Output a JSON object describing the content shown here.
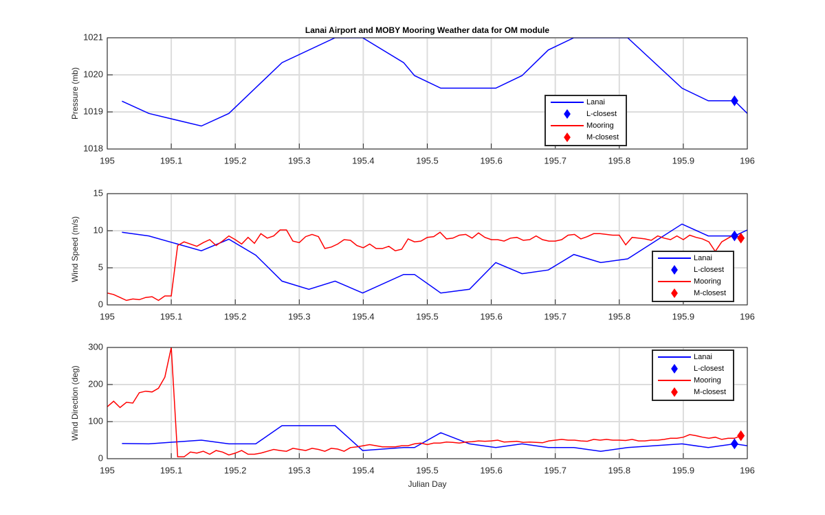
{
  "chart_data": [
    {
      "type": "line",
      "title": "Lanai Airport and MOBY Mooring Weather data for OM module",
      "y_label": "Pressure (mb)",
      "xlim": [
        195,
        196
      ],
      "xticks": [
        195,
        195.1,
        195.2,
        195.3,
        195.4,
        195.5,
        195.6,
        195.7,
        195.8,
        195.9,
        196
      ],
      "ylim": [
        1018,
        1021
      ],
      "yticks": [
        1018,
        1019,
        1020,
        1021
      ],
      "grid": true,
      "legend": "best",
      "series": [
        {
          "name": "Lanai",
          "color": "#0000ff",
          "marker": "none",
          "x": [
            195.023,
            195.065,
            195.147,
            195.19,
            195.273,
            195.356,
            195.399,
            195.463,
            195.48,
            195.521,
            195.607,
            195.648,
            195.689,
            195.729,
            195.813,
            195.898,
            195.939,
            195.98,
            196.0
          ],
          "values": [
            1019.29,
            1018.96,
            1018.62,
            1018.96,
            1020.33,
            1021,
            1021,
            1020.33,
            1019.98,
            1019.64,
            1019.64,
            1019.98,
            1020.67,
            1021,
            1021,
            1019.64,
            1019.3,
            1019.3,
            1018.96
          ]
        },
        {
          "name": "L-closest",
          "color": "#0000ff",
          "marker": "diamond",
          "x": [
            195.98
          ],
          "values": [
            1019.3
          ]
        },
        {
          "name": "Mooring",
          "color": "#ff0000",
          "marker": "none",
          "x": [],
          "values": []
        },
        {
          "name": "M-closest",
          "color": "#ff0000",
          "marker": "diamond",
          "x": [],
          "values": []
        }
      ]
    },
    {
      "type": "line",
      "y_label": "Wind Speed (m/s)",
      "xlim": [
        195,
        196
      ],
      "xticks": [
        195,
        195.1,
        195.2,
        195.3,
        195.4,
        195.5,
        195.6,
        195.7,
        195.8,
        195.9,
        196
      ],
      "ylim": [
        0,
        15
      ],
      "yticks": [
        0,
        5,
        10,
        15
      ],
      "grid": true,
      "legend": "southeast",
      "series": [
        {
          "name": "Lanai",
          "color": "#0000ff",
          "marker": "none",
          "x": [
            195.023,
            195.065,
            195.147,
            195.19,
            195.232,
            195.273,
            195.315,
            195.356,
            195.399,
            195.463,
            195.48,
            195.521,
            195.566,
            195.607,
            195.648,
            195.689,
            195.729,
            195.771,
            195.813,
            195.898,
            195.939,
            195.98,
            196.0
          ],
          "values": [
            9.8,
            9.3,
            7.3,
            8.85,
            6.7,
            3.2,
            2.1,
            3.2,
            1.6,
            4.1,
            4.1,
            1.6,
            2.1,
            5.7,
            4.2,
            4.7,
            6.8,
            5.7,
            6.2,
            10.9,
            9.3,
            9.3,
            10.1
          ]
        },
        {
          "name": "L-closest",
          "color": "#0000ff",
          "marker": "diamond",
          "x": [
            195.98
          ],
          "values": [
            9.3
          ]
        },
        {
          "name": "Mooring",
          "color": "#ff0000",
          "marker": "none",
          "x": [
            195,
            195.01,
            195.02,
            195.03,
            195.04,
            195.05,
            195.06,
            195.07,
            195.08,
            195.09,
            195.1,
            195.11,
            195.12,
            195.13,
            195.14,
            195.15,
            195.16,
            195.17,
            195.18,
            195.19,
            195.2,
            195.21,
            195.22,
            195.23,
            195.24,
            195.25,
            195.26,
            195.27,
            195.28,
            195.29,
            195.3,
            195.31,
            195.32,
            195.33,
            195.34,
            195.35,
            195.36,
            195.37,
            195.38,
            195.39,
            195.4,
            195.41,
            195.42,
            195.43,
            195.44,
            195.45,
            195.46,
            195.47,
            195.48,
            195.49,
            195.5,
            195.51,
            195.52,
            195.53,
            195.54,
            195.55,
            195.56,
            195.57,
            195.58,
            195.59,
            195.6,
            195.61,
            195.62,
            195.63,
            195.64,
            195.65,
            195.66,
            195.67,
            195.68,
            195.69,
            195.7,
            195.71,
            195.72,
            195.73,
            195.74,
            195.75,
            195.76,
            195.77,
            195.78,
            195.79,
            195.8,
            195.81,
            195.82,
            195.83,
            195.84,
            195.85,
            195.86,
            195.87,
            195.88,
            195.89,
            195.9,
            195.91,
            195.92,
            195.93,
            195.94,
            195.95,
            195.96,
            195.97,
            195.98,
            195.99
          ],
          "values": [
            1.6,
            1.4,
            1.0,
            0.6,
            0.8,
            0.7,
            1.0,
            1.1,
            0.6,
            1.2,
            1.2,
            8.0,
            8.5,
            8.2,
            7.9,
            8.4,
            8.8,
            8.0,
            8.6,
            9.3,
            8.8,
            8.2,
            9.1,
            8.3,
            9.6,
            9.0,
            9.3,
            10.1,
            10.1,
            8.6,
            8.4,
            9.2,
            9.5,
            9.2,
            7.6,
            7.8,
            8.2,
            8.8,
            8.7,
            8.0,
            7.7,
            8.2,
            7.6,
            7.6,
            7.9,
            7.3,
            7.5,
            8.9,
            8.5,
            8.6,
            9.1,
            9.2,
            9.8,
            8.9,
            9.0,
            9.4,
            9.5,
            9.0,
            9.7,
            9.1,
            8.8,
            8.8,
            8.6,
            9.0,
            9.1,
            8.7,
            8.8,
            9.3,
            8.8,
            8.6,
            8.6,
            8.8,
            9.4,
            9.5,
            8.9,
            9.2,
            9.6,
            9.6,
            9.5,
            9.4,
            9.4,
            8.1,
            9.1,
            9.0,
            8.9,
            8.7,
            9.3,
            9.0,
            8.8,
            9.3,
            8.8,
            9.4,
            9.1,
            8.9,
            8.5,
            7.2,
            8.5,
            9.0,
            9.5,
            9.0
          ]
        },
        {
          "name": "M-closest",
          "color": "#ff0000",
          "marker": "diamond",
          "x": [
            195.99
          ],
          "values": [
            9.0
          ]
        }
      ]
    },
    {
      "type": "line",
      "y_label": "Wind Direction (deg)",
      "x_label": "Julian Day",
      "xlim": [
        195,
        196
      ],
      "xticks": [
        195,
        195.1,
        195.2,
        195.3,
        195.4,
        195.5,
        195.6,
        195.7,
        195.8,
        195.9,
        196
      ],
      "ylim": [
        0,
        300
      ],
      "yticks": [
        0,
        100,
        200,
        300
      ],
      "grid": true,
      "legend": "northeast",
      "series": [
        {
          "name": "Lanai",
          "color": "#0000ff",
          "marker": "none",
          "x": [
            195.023,
            195.065,
            195.147,
            195.19,
            195.232,
            195.273,
            195.356,
            195.399,
            195.463,
            195.48,
            195.521,
            195.566,
            195.607,
            195.648,
            195.689,
            195.729,
            195.771,
            195.813,
            195.898,
            195.939,
            195.98,
            196.0
          ],
          "values": [
            41,
            40,
            50,
            40,
            40,
            89,
            89,
            22,
            30,
            30,
            70,
            40,
            30,
            40,
            30,
            30,
            20,
            30,
            40,
            30,
            40,
            35
          ]
        },
        {
          "name": "L-closest",
          "color": "#0000ff",
          "marker": "diamond",
          "x": [
            195.98
          ],
          "values": [
            40
          ]
        },
        {
          "name": "Mooring",
          "color": "#ff0000",
          "marker": "none",
          "x": [
            195,
            195.01,
            195.02,
            195.03,
            195.04,
            195.05,
            195.06,
            195.07,
            195.08,
            195.09,
            195.1,
            195.11,
            195.12,
            195.13,
            195.14,
            195.15,
            195.16,
            195.17,
            195.18,
            195.19,
            195.2,
            195.21,
            195.22,
            195.23,
            195.24,
            195.25,
            195.26,
            195.27,
            195.28,
            195.29,
            195.3,
            195.31,
            195.32,
            195.33,
            195.34,
            195.35,
            195.36,
            195.37,
            195.38,
            195.39,
            195.4,
            195.41,
            195.42,
            195.43,
            195.44,
            195.45,
            195.46,
            195.47,
            195.48,
            195.49,
            195.5,
            195.51,
            195.52,
            195.53,
            195.54,
            195.55,
            195.56,
            195.57,
            195.58,
            195.59,
            195.6,
            195.61,
            195.62,
            195.63,
            195.64,
            195.65,
            195.66,
            195.67,
            195.68,
            195.69,
            195.7,
            195.71,
            195.72,
            195.73,
            195.74,
            195.75,
            195.76,
            195.77,
            195.78,
            195.79,
            195.8,
            195.81,
            195.82,
            195.83,
            195.84,
            195.85,
            195.86,
            195.87,
            195.88,
            195.89,
            195.9,
            195.91,
            195.92,
            195.93,
            195.94,
            195.95,
            195.96,
            195.97,
            195.98,
            195.99
          ],
          "values": [
            140,
            155,
            138,
            152,
            150,
            178,
            182,
            180,
            190,
            220,
            300,
            5,
            5,
            18,
            15,
            20,
            12,
            22,
            18,
            10,
            15,
            22,
            12,
            12,
            15,
            20,
            25,
            22,
            20,
            28,
            25,
            22,
            28,
            25,
            20,
            28,
            26,
            20,
            30,
            32,
            35,
            38,
            35,
            32,
            32,
            32,
            35,
            35,
            40,
            42,
            38,
            42,
            42,
            45,
            44,
            42,
            45,
            46,
            48,
            47,
            48,
            50,
            45,
            46,
            47,
            44,
            45,
            44,
            43,
            48,
            50,
            52,
            50,
            50,
            48,
            47,
            52,
            50,
            52,
            50,
            50,
            49,
            52,
            48,
            48,
            50,
            50,
            52,
            55,
            55,
            58,
            65,
            62,
            58,
            55,
            58,
            52,
            55,
            55,
            62
          ]
        },
        {
          "name": "M-closest",
          "color": "#ff0000",
          "marker": "diamond",
          "x": [
            195.99
          ],
          "values": [
            62
          ]
        }
      ]
    }
  ]
}
